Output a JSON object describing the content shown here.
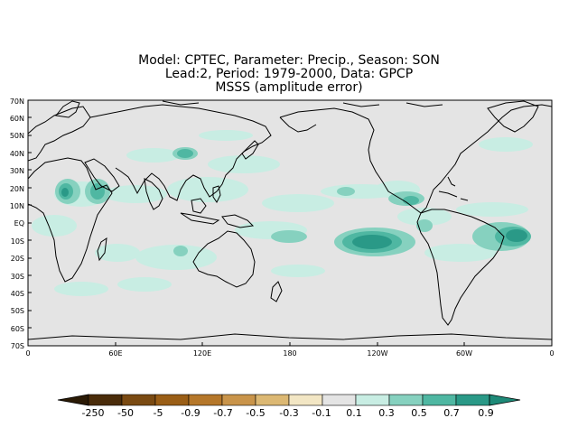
{
  "title": {
    "line1": "Model: CPTEC, Parameter: Precip., Season: SON",
    "line2": "Lead:2, Period: 1979-2000, Data: GPCP",
    "line3": "MSSS (amplitude error)"
  },
  "map": {
    "lat_labels": [
      "70N",
      "60N",
      "50N",
      "40N",
      "30N",
      "20N",
      "10N",
      "EQ",
      "10S",
      "20S",
      "30S",
      "40S",
      "50S",
      "60S",
      "70S"
    ],
    "lon_labels": [
      "0",
      "60E",
      "120E",
      "180",
      "120W",
      "60W",
      "0"
    ],
    "background_color": "#e4e4e4"
  },
  "colorbar": {
    "labels": [
      "-250",
      "-50",
      "-5",
      "-0.9",
      "-0.7",
      "-0.5",
      "-0.3",
      "-0.1",
      "0.1",
      "0.3",
      "0.5",
      "0.7",
      "0.9"
    ],
    "colors": [
      "#2b1a05",
      "#4a2c0a",
      "#7a4a12",
      "#9a5e16",
      "#b5772a",
      "#c9944a",
      "#dcb873",
      "#f2e6c4",
      "#e4e4e4",
      "#c8ede3",
      "#86d1bf",
      "#4fb7a2",
      "#2a9987",
      "#1e8a78"
    ]
  }
}
